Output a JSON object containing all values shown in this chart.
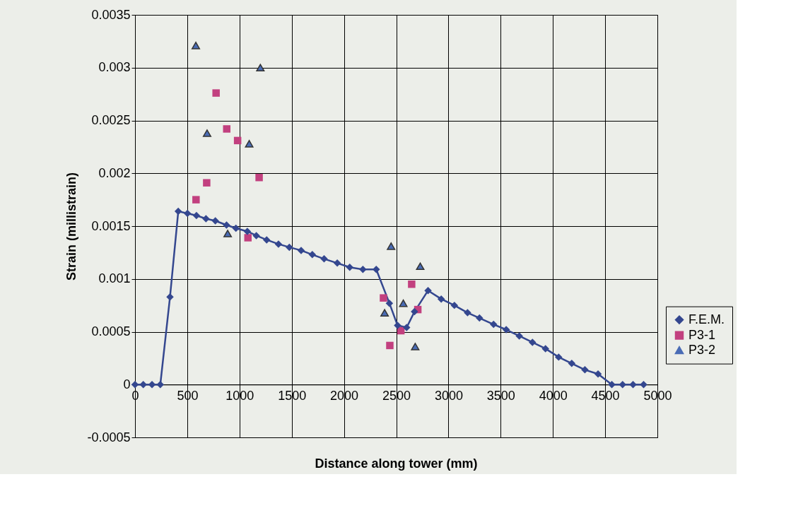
{
  "chart_data": {
    "type": "line",
    "xlabel": "Distance along tower (mm)",
    "ylabel": "Strain (millistrain)",
    "xlim": [
      0,
      5000
    ],
    "xticks": [
      0,
      500,
      1000,
      1500,
      2000,
      2500,
      3000,
      3500,
      4000,
      4500,
      5000
    ],
    "ylim": [
      -0.0005,
      0.0035
    ],
    "yticks": [
      -0.0005,
      0,
      0.0005,
      0.001,
      0.0015,
      0.002,
      0.0025,
      0.003,
      0.0035
    ],
    "grid": true,
    "legend": "right",
    "series": [
      {
        "name": "F.E.M.",
        "marker": "diamond",
        "line_style": "solid",
        "color": "#34478f",
        "x": [
          0,
          79,
          163,
          242,
          335,
          414,
          502,
          588,
          679,
          769,
          876,
          966,
          1075,
          1161,
          1260,
          1373,
          1477,
          1590,
          1697,
          1810,
          1936,
          2055,
          2181,
          2309,
          2435,
          2513,
          2600,
          2675,
          2805,
          2931,
          3057,
          3183,
          3297,
          3432,
          3553,
          3678,
          3804,
          3929,
          4055,
          4180,
          4306,
          4432,
          4564,
          4667,
          4767,
          4868
        ],
        "values": [
          0,
          0,
          0,
          0,
          0.00083,
          0.00164,
          0.00162,
          0.0016,
          0.00157,
          0.00155,
          0.00151,
          0.00148,
          0.00145,
          0.00141,
          0.00137,
          0.00133,
          0.0013,
          0.00127,
          0.00123,
          0.00119,
          0.00115,
          0.00111,
          0.00109,
          0.00109,
          0.00077,
          0.00056,
          0.00054,
          0.00069,
          0.00089,
          0.00081,
          0.00075,
          0.00068,
          0.00063,
          0.00057,
          0.00052,
          0.00046,
          0.0004,
          0.00034,
          0.00026,
          0.0002,
          0.00014,
          0.0001,
          0,
          0,
          0,
          0
        ]
      },
      {
        "name": "P3-1",
        "type": "scatter",
        "marker": "square",
        "color": "#c2407f",
        "x": [
          584,
          686,
          776,
          878,
          982,
          1081,
          1188,
          2378,
          2439,
          2545,
          2648,
          2707
        ],
        "values": [
          0.00175,
          0.00191,
          0.00276,
          0.00242,
          0.00231,
          0.00139,
          0.00196,
          0.00082,
          0.00037,
          0.00051,
          0.00095,
          0.00071
        ]
      },
      {
        "name": "P3-2",
        "type": "scatter",
        "marker": "triangle",
        "color": "#4a6cb5",
        "x": [
          582,
          690,
          887,
          1093,
          1200,
          2389,
          2451,
          2568,
          2682,
          2730
        ],
        "values": [
          0.00321,
          0.00238,
          0.00143,
          0.00228,
          0.003,
          0.00068,
          0.00131,
          0.00077,
          0.00036,
          0.00112
        ]
      }
    ]
  }
}
